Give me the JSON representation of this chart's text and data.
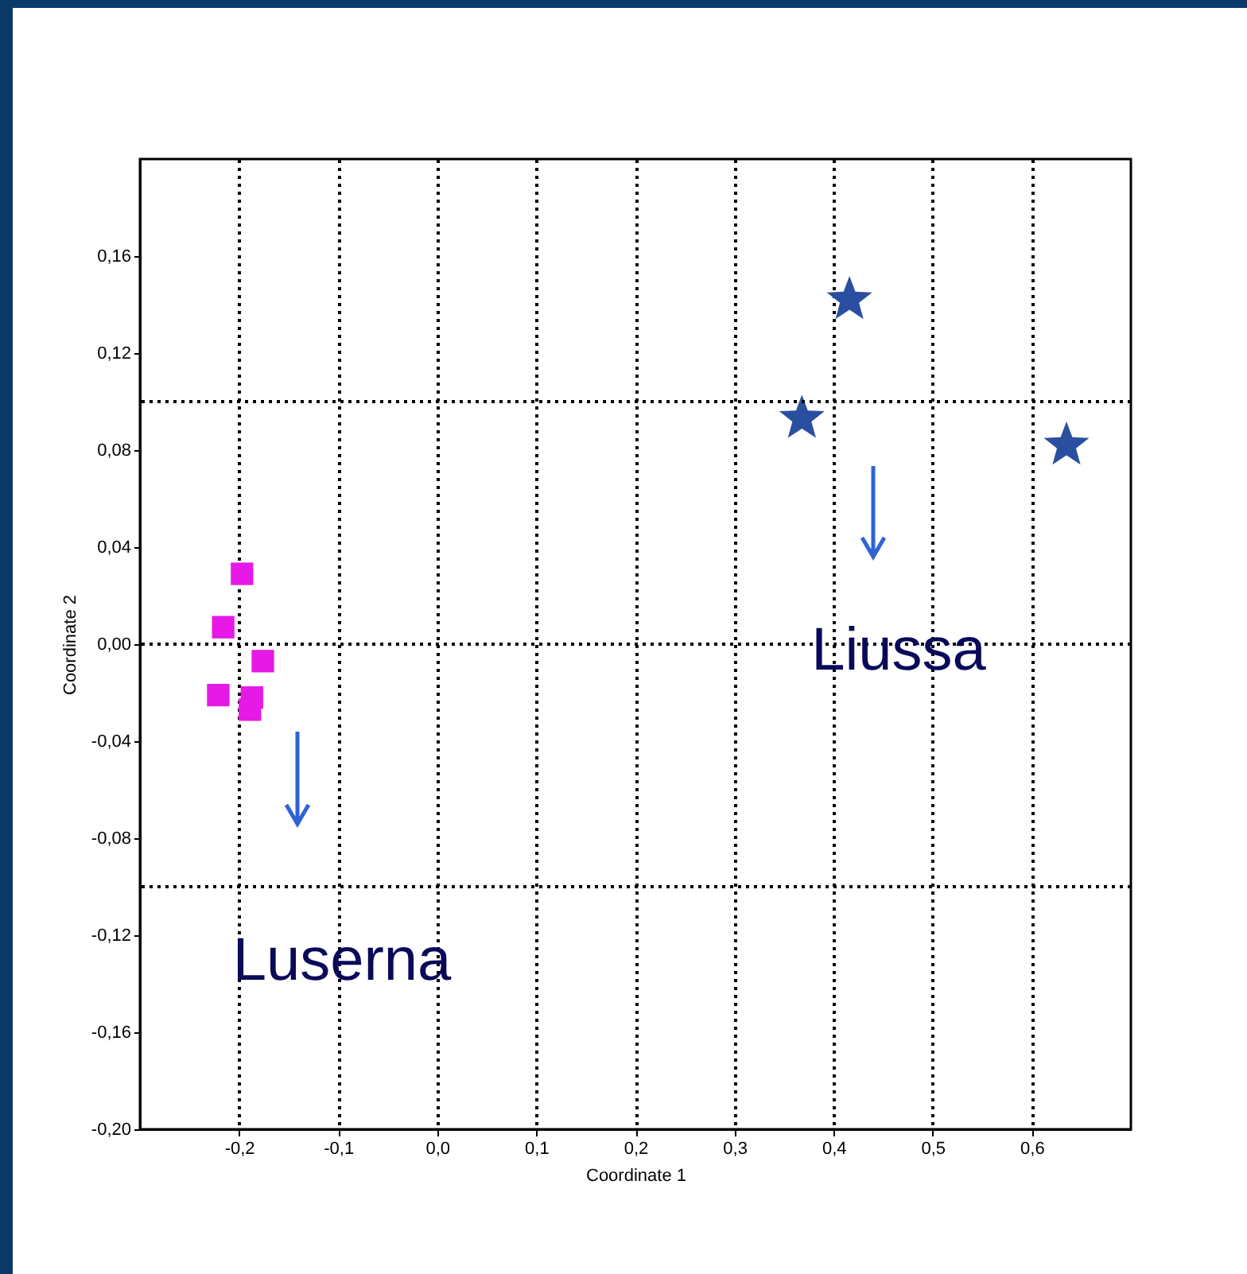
{
  "chart_data": {
    "type": "scatter",
    "xlabel": "Coordinate 1",
    "ylabel": "Coordinate 2",
    "series": [
      {
        "color": "#e619e6",
        "marker": "square",
        "x": [
          -0.197,
          -0.216,
          -0.176,
          -0.221,
          -0.187,
          -0.189
        ],
        "values": [
          0.029,
          0.007,
          -0.007,
          -0.021,
          -0.022,
          -0.027
        ]
      },
      {
        "color": "#2a4fa0",
        "marker": "star",
        "x": [
          0.416,
          0.368,
          0.635
        ],
        "values": [
          0.142,
          0.093,
          0.082
        ]
      }
    ],
    "xlim": [
      -0.3,
      0.7
    ],
    "xticks": [
      {
        "value": -0.2,
        "label": "-0,2"
      },
      {
        "value": -0.1,
        "label": "-0,1"
      },
      {
        "value": 0,
        "label": "0,0"
      },
      {
        "value": 0.1,
        "label": "0,1"
      },
      {
        "value": 0.2,
        "label": "0,2"
      },
      {
        "value": 0.3,
        "label": "0,3"
      },
      {
        "value": 0.4,
        "label": "0,4"
      },
      {
        "value": 0.5,
        "label": "0,5"
      },
      {
        "value": 0.6,
        "label": "0,6"
      }
    ],
    "ylim": [
      -0.2,
      0.2
    ],
    "yticks": [
      {
        "value": 0.16,
        "label": "0,16"
      },
      {
        "value": 0.12,
        "label": "0,12"
      },
      {
        "value": 0.08,
        "label": "0,08"
      },
      {
        "value": 0.04,
        "label": "0,04"
      },
      {
        "value": 0,
        "label": "0,00"
      },
      {
        "value": -0.04,
        "label": "-0,04"
      },
      {
        "value": -0.08,
        "label": "-0,08"
      },
      {
        "value": -0.12,
        "label": "-0,12"
      },
      {
        "value": -0.16,
        "label": "-0,16"
      },
      {
        "value": -0.2,
        "label": "-0,20"
      }
    ],
    "grid": "x",
    "ref_lines": [
      {
        "axis": "y",
        "value": 0.1,
        "line_style": "dotted"
      },
      {
        "axis": "y",
        "value": 0,
        "line_style": "dotted"
      },
      {
        "axis": "y",
        "value": -0.1,
        "line_style": "dotted"
      }
    ],
    "annotations": [
      "Liussa",
      "Luserna"
    ]
  }
}
